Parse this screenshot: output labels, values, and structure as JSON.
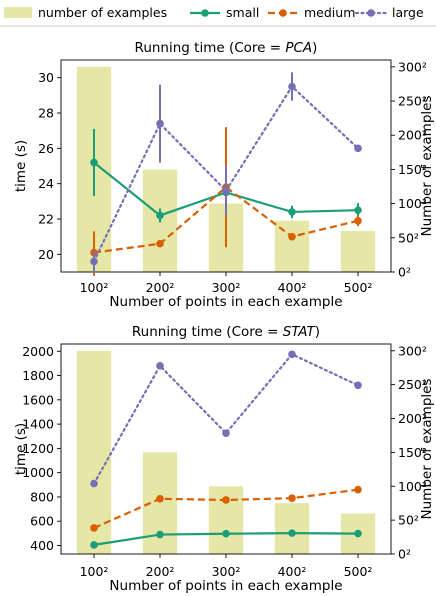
{
  "legend": {
    "items": [
      {
        "label": "number of examples",
        "kind": "bar",
        "color": "#e6e6a6"
      },
      {
        "label": "small",
        "kind": "line",
        "color": "#1b9e77",
        "dash": "solid"
      },
      {
        "label": "medium",
        "kind": "line",
        "color": "#d95f02",
        "dash": "dashed"
      },
      {
        "label": "large",
        "kind": "line",
        "color": "#7570b3",
        "dash": "dotted"
      }
    ]
  },
  "chart_data": [
    {
      "type": "bar+line",
      "title_prefix": "Running time (Core = ",
      "title_italic": "PCA",
      "title_suffix": ")",
      "xlabel": "Number of points in each example",
      "ylabel": "time (s)",
      "y2label": "Number of examples",
      "categories": [
        "100²",
        "200²",
        "300²",
        "400²",
        "500²"
      ],
      "ylim": [
        19,
        31
      ],
      "yticks": [
        20,
        22,
        24,
        26,
        28,
        30
      ],
      "bar_ylim": [
        0,
        310
      ],
      "bar_values": [
        300,
        150,
        100,
        75,
        60
      ],
      "bar_ticks": [
        "0²",
        "50²",
        "100²",
        "150²",
        "200²",
        "250²",
        "300²"
      ],
      "bar_tick_values": [
        0,
        50,
        100,
        150,
        200,
        250,
        300
      ],
      "series": [
        {
          "name": "small",
          "values": [
            25.2,
            22.2,
            23.5,
            22.4,
            22.5
          ],
          "err": [
            1.9,
            0.4,
            0.4,
            0.35,
            0.4
          ]
        },
        {
          "name": "medium",
          "values": [
            20.1,
            20.6,
            23.8,
            21.0,
            21.9
          ],
          "err": [
            1.2,
            0.1,
            3.4,
            0.1,
            0.3
          ]
        },
        {
          "name": "large",
          "values": [
            19.6,
            27.4,
            23.6,
            29.5,
            26.0
          ],
          "err": [
            0.6,
            2.2,
            1.4,
            0.8,
            0.1
          ]
        }
      ]
    },
    {
      "type": "bar+line",
      "title_prefix": "Running time (Core = ",
      "title_italic": "STAT",
      "title_suffix": ")",
      "xlabel": "Number of points in each example",
      "ylabel": "time (s)",
      "y2label": "Number of examples",
      "categories": [
        "100²",
        "200²",
        "300²",
        "400²",
        "500²"
      ],
      "ylim": [
        330,
        2060
      ],
      "yticks": [
        400,
        600,
        800,
        1000,
        1200,
        1400,
        1600,
        1800,
        2000
      ],
      "bar_ylim": [
        0,
        310
      ],
      "bar_values": [
        300,
        150,
        100,
        75,
        60
      ],
      "bar_ticks": [
        "0²",
        "50²",
        "100²",
        "150²",
        "200²",
        "250²",
        "300²"
      ],
      "bar_tick_values": [
        0,
        50,
        100,
        150,
        200,
        250,
        300
      ],
      "series": [
        {
          "name": "small",
          "values": [
            405,
            490,
            497,
            502,
            498
          ],
          "err": [
            0,
            0,
            0,
            0,
            0
          ]
        },
        {
          "name": "medium",
          "values": [
            545,
            785,
            775,
            790,
            860
          ],
          "err": [
            0,
            0,
            0,
            0,
            0
          ]
        },
        {
          "name": "large",
          "values": [
            910,
            1880,
            1325,
            1975,
            1720
          ],
          "err": [
            0,
            0,
            0,
            0,
            0
          ]
        }
      ]
    }
  ]
}
